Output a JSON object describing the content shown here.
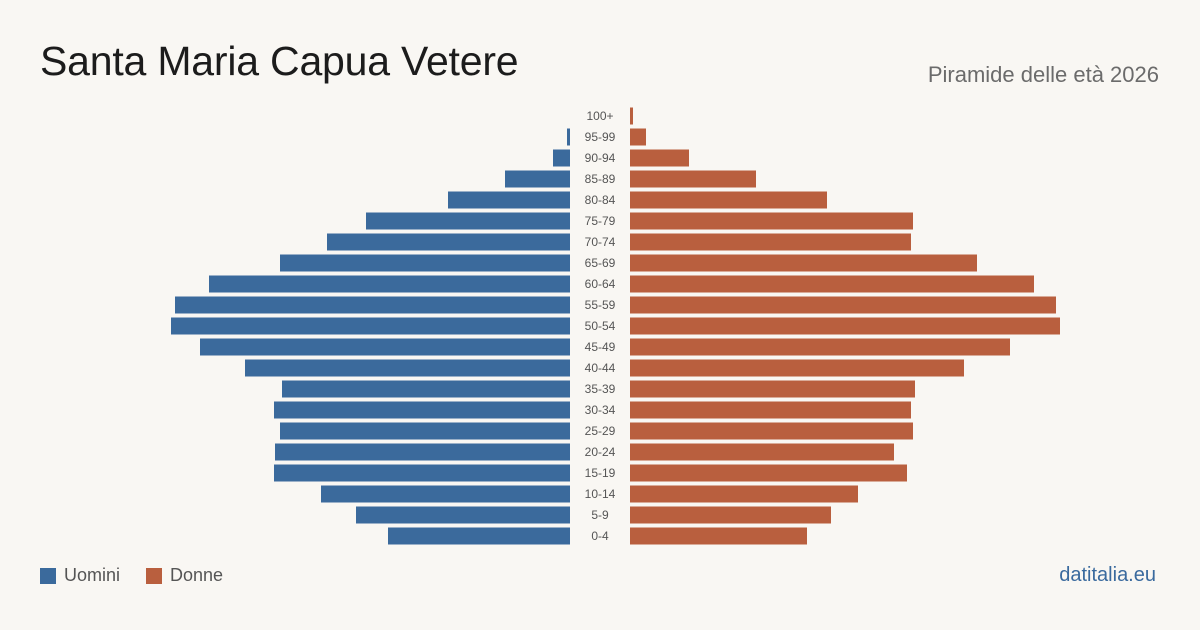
{
  "header": {
    "title": "Santa Maria Capua Vetere",
    "subtitle": "Piramide delle età 2026"
  },
  "legend": {
    "men_label": "Uomini",
    "women_label": "Donne"
  },
  "footer": {
    "source": "datitalia.eu"
  },
  "colors": {
    "men": "#3b6a9c",
    "women": "#b95f3e"
  },
  "chart_data": {
    "type": "bar",
    "orientation": "horizontal-pyramid",
    "categories": [
      "100+",
      "95-99",
      "90-94",
      "85-89",
      "80-84",
      "75-79",
      "70-74",
      "65-69",
      "60-64",
      "55-59",
      "50-54",
      "45-49",
      "40-44",
      "35-39",
      "30-34",
      "25-29",
      "20-24",
      "15-19",
      "10-14",
      "5-9",
      "0-4"
    ],
    "series": [
      {
        "name": "Uomini",
        "values": [
          0,
          3,
          17,
          65,
          122,
          204,
          243,
          290,
          361,
          395,
          399,
          370,
          325,
          288,
          296,
          290,
          295,
          296,
          249,
          214,
          182
        ]
      },
      {
        "name": "Donne",
        "values": [
          3,
          16,
          59,
          126,
          197,
          283,
          281,
          347,
          404,
          426,
          430,
          380,
          334,
          285,
          281,
          283,
          264,
          277,
          228,
          201,
          177
        ]
      }
    ]
  }
}
